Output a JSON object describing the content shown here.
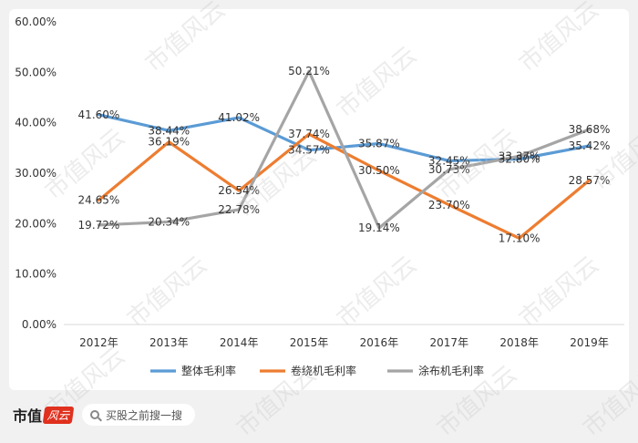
{
  "chart_data": {
    "type": "line",
    "categories": [
      "2012年",
      "2013年",
      "2014年",
      "2015年",
      "2016年",
      "2017年",
      "2018年",
      "2019年"
    ],
    "ylim": [
      0,
      60
    ],
    "yticks": [
      "0.00%",
      "10.00%",
      "20.00%",
      "30.00%",
      "40.00%",
      "50.00%",
      "60.00%"
    ],
    "grid": false,
    "legend_position": "bottom",
    "series": [
      {
        "name": "整体毛利率",
        "color": "#5b9bd5",
        "values": [
          41.6,
          38.44,
          41.02,
          34.57,
          35.87,
          32.45,
          32.8,
          35.42
        ],
        "labels": [
          "41.60%",
          "38.44%",
          "41.02%",
          "34.57%",
          "35.87%",
          "32.45%",
          "32.80%",
          "35.42%"
        ]
      },
      {
        "name": "卷绕机毛利率",
        "color": "#ed7d31",
        "values": [
          24.65,
          36.19,
          26.54,
          37.74,
          30.5,
          23.7,
          17.1,
          28.57
        ],
        "labels": [
          "24.65%",
          "36.19%",
          "26.54%",
          "37.74%",
          "30.50%",
          "23.70%",
          "17.10%",
          "28.57%"
        ]
      },
      {
        "name": "涂布机毛利率",
        "color": "#a5a5a5",
        "values": [
          19.72,
          20.34,
          22.78,
          50.21,
          19.14,
          30.73,
          33.37,
          38.68
        ],
        "labels": [
          "19.72%",
          "20.34%",
          "22.78%",
          "50.21%",
          "19.14%",
          "30.73%",
          "33.37%",
          "38.68%"
        ]
      }
    ]
  },
  "watermark_text": "市值风云",
  "footer": {
    "brand": "市值",
    "brand_script": "风云",
    "search_placeholder": "买股之前搜一搜"
  }
}
